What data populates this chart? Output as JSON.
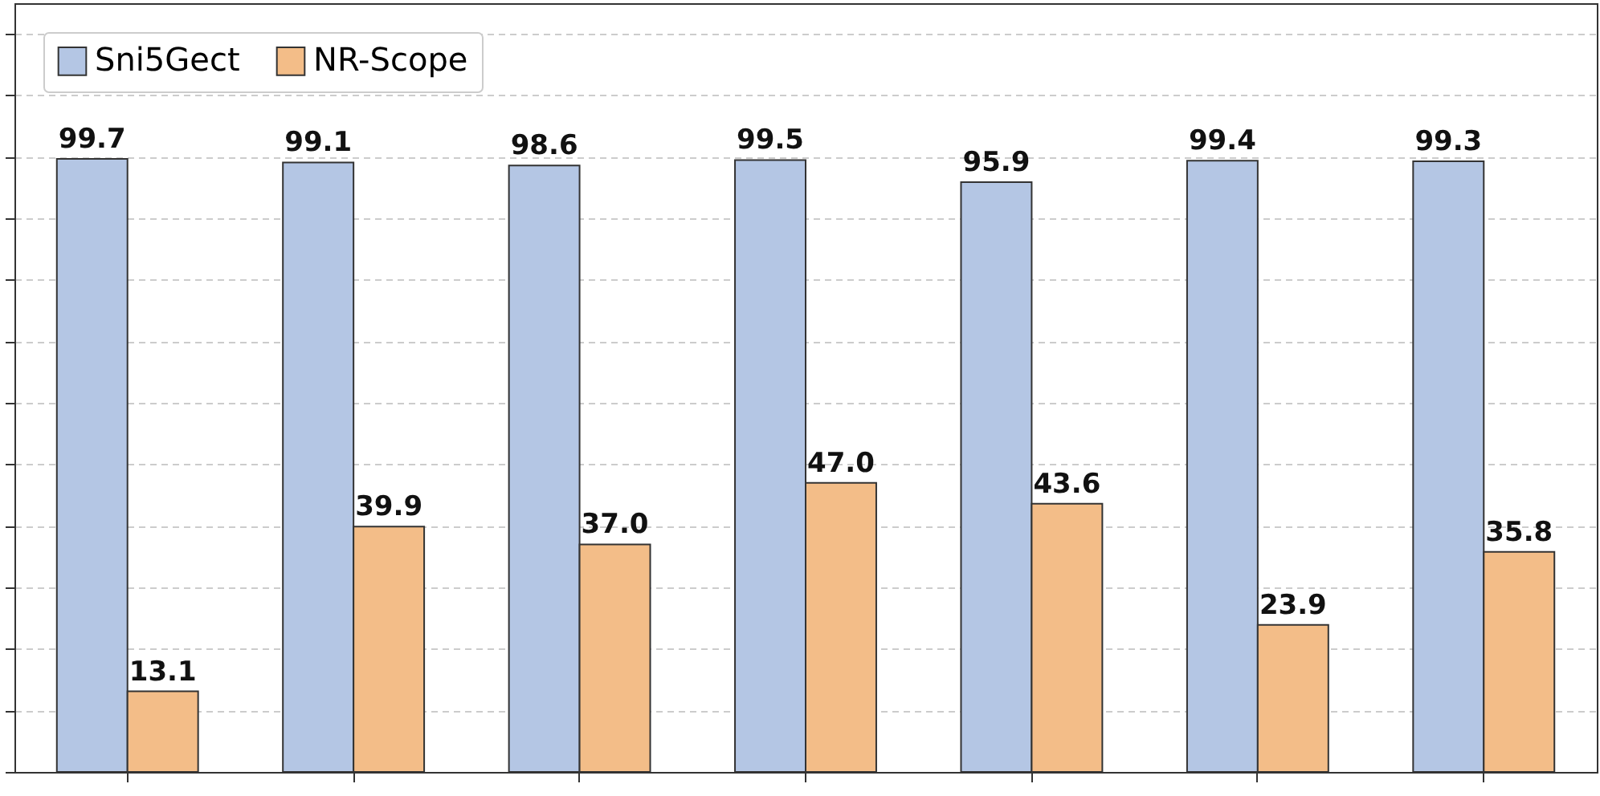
{
  "chart_data": {
    "type": "bar",
    "categories": [
      null,
      null,
      null,
      null,
      null,
      null,
      null
    ],
    "series": [
      {
        "name": "Sni5Gect",
        "color": "#b4c6e4",
        "values": [
          99.7,
          99.1,
          98.6,
          99.5,
          95.9,
          99.4,
          99.3
        ],
        "value_labels": [
          "99.7",
          "99.1",
          "98.6",
          "99.5",
          "95.9",
          "99.4",
          "99.3"
        ]
      },
      {
        "name": "NR-Scope",
        "color": "#f3bd88",
        "values": [
          13.1,
          39.9,
          37.0,
          47.0,
          43.6,
          23.9,
          35.8
        ],
        "value_labels": [
          "13.1",
          "39.9",
          "37.0",
          "47.0",
          "43.6",
          "23.9",
          "35.8"
        ]
      }
    ],
    "ylim": [
      0,
      125
    ],
    "yticks": [
      {
        "value": 0,
        "label": null
      },
      {
        "value": 10,
        "label": null
      },
      {
        "value": 20,
        "label": null
      },
      {
        "value": 30,
        "label": null
      },
      {
        "value": 40,
        "label": null
      },
      {
        "value": 50,
        "label": null
      },
      {
        "value": 60,
        "label": null
      },
      {
        "value": 70,
        "label": null
      },
      {
        "value": 80,
        "label": null
      },
      {
        "value": 90,
        "label": null
      },
      {
        "value": 100,
        "label": null
      },
      {
        "value": 110,
        "label": null
      },
      {
        "value": 120,
        "label": null
      }
    ],
    "grid": "y",
    "legend": "top left",
    "tick_labels": false
  }
}
